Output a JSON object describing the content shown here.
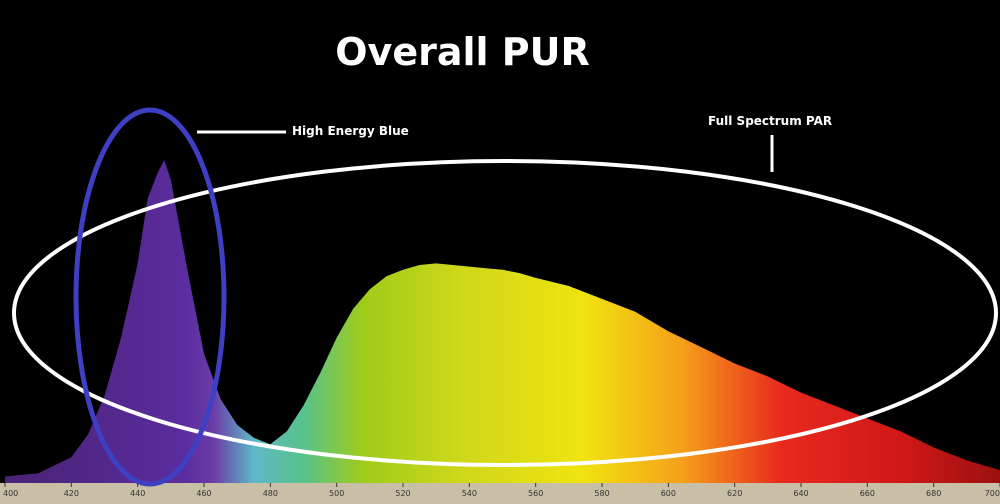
{
  "chart_data": {
    "type": "area",
    "title": "Overall PUR",
    "xlabel": "",
    "ylabel": "",
    "xlim": [
      400,
      700
    ],
    "ylim": [
      0,
      100
    ],
    "x_ticks": [
      400,
      420,
      440,
      460,
      480,
      500,
      520,
      540,
      560,
      580,
      600,
      620,
      640,
      660,
      680,
      700
    ],
    "x": [
      400,
      410,
      420,
      425,
      430,
      435,
      440,
      443,
      446,
      448,
      450,
      455,
      460,
      465,
      470,
      475,
      480,
      485,
      490,
      495,
      500,
      505,
      510,
      515,
      520,
      525,
      530,
      535,
      540,
      545,
      550,
      555,
      560,
      570,
      580,
      590,
      600,
      610,
      620,
      630,
      640,
      650,
      660,
      670,
      680,
      690,
      700
    ],
    "series": [
      {
        "values": [
          2,
          3,
          8,
          15,
          27,
          45,
          68,
          88,
          96,
          100,
          94,
          66,
          40,
          26,
          18,
          14,
          12,
          16,
          24,
          34,
          45,
          54,
          60,
          64,
          66,
          67.5,
          68,
          67.5,
          67,
          66.5,
          66,
          65,
          63.5,
          61,
          57,
          53,
          47,
          42,
          37,
          33,
          28,
          24,
          20,
          16,
          11,
          7,
          4
        ]
      }
    ],
    "annotations": {
      "blue": "High Energy Blue",
      "par": "Full Spectrum PAR"
    },
    "colors": {
      "blue_ellipse": "#3f3fc4",
      "par_ellipse": "#ffffff",
      "background": "#000000",
      "axis_strip": "#c8bfa6"
    },
    "grid": false,
    "legend": "none"
  }
}
